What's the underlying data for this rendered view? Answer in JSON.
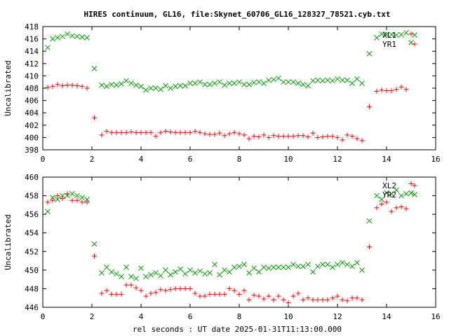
{
  "chart_data": {
    "title": "HIRES continuum, GL16, file:Skynet_60706_GL16_128327_78521.cyb.txt",
    "xlabel": "rel seconds : UT date 2025-01-31T11:13:00.000",
    "panels": [
      {
        "type": "scatter",
        "ylabel": "Uncalibrated",
        "xlim": [
          0,
          16
        ],
        "ylim": [
          398,
          418
        ],
        "xticks": [
          "0",
          "2",
          "4",
          "6",
          "8",
          "10",
          "12",
          "14",
          "16"
        ],
        "yticks": [
          "398",
          "400",
          "402",
          "404",
          "406",
          "408",
          "410",
          "412",
          "414",
          "416",
          "418"
        ],
        "grid": false,
        "legend_position": "top-right",
        "series": [
          {
            "name": "XL1",
            "marker": "x",
            "color": "#00a000",
            "x": [
              0.2,
              0.4,
              0.6,
              0.8,
              1.0,
              1.2,
              1.4,
              1.6,
              1.8,
              2.1,
              2.4,
              2.6,
              2.8,
              3.0,
              3.2,
              3.4,
              3.6,
              3.8,
              4.0,
              4.2,
              4.4,
              4.6,
              4.8,
              5.0,
              5.2,
              5.4,
              5.6,
              5.8,
              6.0,
              6.2,
              6.4,
              6.6,
              6.8,
              7.0,
              7.2,
              7.4,
              7.6,
              7.8,
              8.0,
              8.2,
              8.4,
              8.6,
              8.8,
              9.0,
              9.2,
              9.4,
              9.6,
              9.8,
              10.0,
              10.2,
              10.4,
              10.6,
              10.8,
              11.0,
              11.2,
              11.4,
              11.6,
              11.8,
              12.0,
              12.2,
              12.4,
              12.6,
              12.8,
              13.0,
              13.3,
              13.6,
              13.8,
              14.0,
              14.2,
              14.4,
              14.6,
              14.8,
              15.0
            ],
            "y": [
              414.6,
              416.0,
              416.2,
              416.4,
              416.8,
              416.5,
              416.4,
              416.3,
              416.2,
              411.2,
              408.5,
              408.3,
              408.6,
              408.5,
              408.7,
              409.2,
              408.8,
              408.5,
              408.3,
              407.7,
              408.0,
              408.0,
              407.8,
              408.4,
              408.0,
              408.3,
              408.4,
              408.4,
              408.8,
              408.8,
              409.0,
              408.6,
              408.6,
              408.8,
              409.0,
              408.5,
              408.8,
              408.8,
              409.0,
              408.6,
              408.6,
              408.9,
              409.0,
              408.8,
              409.3,
              409.4,
              409.6,
              409.0,
              409.0,
              409.0,
              408.8,
              408.6,
              408.4,
              409.2,
              409.3,
              409.2,
              409.3,
              409.2,
              409.5,
              409.3,
              409.3,
              408.8,
              409.5,
              408.8,
              413.6,
              416.2,
              416.8,
              416.7,
              416.7,
              416.6,
              416.7,
              417.0,
              415.4
            ]
          },
          {
            "name": "YR1",
            "marker": "+",
            "color": "#ff0000",
            "x": [
              0.2,
              0.4,
              0.6,
              0.8,
              1.0,
              1.2,
              1.4,
              1.6,
              1.8,
              2.1,
              2.4,
              2.6,
              2.8,
              3.0,
              3.2,
              3.4,
              3.6,
              3.8,
              4.0,
              4.2,
              4.4,
              4.6,
              4.8,
              5.0,
              5.2,
              5.4,
              5.6,
              5.8,
              6.0,
              6.2,
              6.4,
              6.6,
              6.8,
              7.0,
              7.2,
              7.4,
              7.6,
              7.8,
              8.0,
              8.2,
              8.4,
              8.6,
              8.8,
              9.0,
              9.2,
              9.4,
              9.6,
              9.8,
              10.0,
              10.2,
              10.4,
              10.6,
              10.8,
              11.0,
              11.2,
              11.4,
              11.6,
              11.8,
              12.0,
              12.2,
              12.4,
              12.6,
              12.8,
              13.0,
              13.3,
              13.6,
              13.8,
              14.0,
              14.2,
              14.4,
              14.6,
              14.8,
              15.0
            ],
            "y": [
              408.1,
              408.3,
              408.6,
              408.4,
              408.5,
              408.5,
              408.4,
              408.3,
              408.0,
              403.2,
              400.4,
              401.0,
              400.8,
              400.8,
              400.8,
              400.8,
              400.9,
              400.8,
              400.8,
              400.8,
              400.8,
              400.2,
              400.8,
              401.0,
              400.9,
              400.8,
              400.8,
              400.8,
              400.8,
              401.0,
              400.8,
              400.6,
              400.5,
              400.5,
              400.7,
              400.3,
              400.6,
              400.8,
              400.6,
              400.4,
              399.8,
              400.2,
              400.1,
              400.4,
              400.0,
              400.3,
              400.2,
              400.2,
              400.2,
              400.2,
              400.3,
              400.3,
              400.1,
              400.7,
              400.0,
              400.1,
              400.2,
              400.2,
              400.0,
              399.6,
              400.4,
              400.2,
              399.8,
              399.5,
              405.0,
              407.5,
              407.7,
              407.6,
              407.6,
              407.8,
              408.2,
              407.8,
              416.8
            ]
          }
        ]
      },
      {
        "type": "scatter",
        "ylabel": "Uncalibrated",
        "xlim": [
          0,
          16
        ],
        "ylim": [
          446,
          460
        ],
        "xticks": [
          "0",
          "2",
          "4",
          "6",
          "8",
          "10",
          "12",
          "14",
          "16"
        ],
        "yticks": [
          "446",
          "448",
          "450",
          "452",
          "454",
          "456",
          "458",
          "460"
        ],
        "grid": false,
        "legend_position": "top-right",
        "series": [
          {
            "name": "XL2",
            "marker": "+",
            "color": "#ff0000",
            "x": [
              0.2,
              0.4,
              0.6,
              0.8,
              1.0,
              1.2,
              1.4,
              1.6,
              1.8,
              2.1,
              2.4,
              2.6,
              2.8,
              3.0,
              3.2,
              3.4,
              3.6,
              3.8,
              4.0,
              4.2,
              4.4,
              4.6,
              4.8,
              5.0,
              5.2,
              5.4,
              5.6,
              5.8,
              6.0,
              6.2,
              6.4,
              6.6,
              6.8,
              7.0,
              7.2,
              7.4,
              7.6,
              7.8,
              8.0,
              8.2,
              8.4,
              8.6,
              8.8,
              9.0,
              9.2,
              9.4,
              9.6,
              9.8,
              10.0,
              10.2,
              10.4,
              10.6,
              10.8,
              11.0,
              11.2,
              11.4,
              11.6,
              11.8,
              12.0,
              12.2,
              12.4,
              12.6,
              12.8,
              13.0,
              13.3,
              13.6,
              13.8,
              14.0,
              14.2,
              14.4,
              14.6,
              14.8,
              15.0
            ],
            "y": [
              457.3,
              457.5,
              458.0,
              457.7,
              458.2,
              457.5,
              457.5,
              457.3,
              457.3,
              451.5,
              447.5,
              447.8,
              447.4,
              447.4,
              447.4,
              448.4,
              448.4,
              448.1,
              447.8,
              447.2,
              447.5,
              447.6,
              447.9,
              447.8,
              447.9,
              448.0,
              448.0,
              448.0,
              448.0,
              447.5,
              447.2,
              447.2,
              447.4,
              447.4,
              447.4,
              447.4,
              448.0,
              447.8,
              447.4,
              447.8,
              446.8,
              447.3,
              447.2,
              446.9,
              447.2,
              446.8,
              447.2,
              446.8,
              446.5,
              447.2,
              447.5,
              446.8,
              447.0,
              446.8,
              446.8,
              446.8,
              446.8,
              447.0,
              447.2,
              446.8,
              446.7,
              447.0,
              447.0,
              446.8,
              452.5,
              456.7,
              457.1,
              457.3,
              456.3,
              456.7,
              456.8,
              456.6,
              459.3
            ]
          },
          {
            "name": "YR2",
            "marker": "x",
            "color": "#00a000",
            "x": [
              0.2,
              0.4,
              0.6,
              0.8,
              1.0,
              1.2,
              1.4,
              1.6,
              1.8,
              2.1,
              2.4,
              2.6,
              2.8,
              3.0,
              3.2,
              3.4,
              3.6,
              3.8,
              4.0,
              4.2,
              4.4,
              4.6,
              4.8,
              5.0,
              5.2,
              5.4,
              5.6,
              5.8,
              6.0,
              6.2,
              6.4,
              6.6,
              6.8,
              7.0,
              7.2,
              7.4,
              7.6,
              7.8,
              8.0,
              8.2,
              8.4,
              8.6,
              8.8,
              9.0,
              9.2,
              9.4,
              9.6,
              9.8,
              10.0,
              10.2,
              10.4,
              10.6,
              10.8,
              11.0,
              11.2,
              11.4,
              11.6,
              11.8,
              12.0,
              12.2,
              12.4,
              12.6,
              12.8,
              13.0,
              13.3,
              13.6,
              13.8,
              14.0,
              14.2,
              14.4,
              14.6,
              14.8,
              15.0
            ],
            "y": [
              456.3,
              457.8,
              457.6,
              458.0,
              458.0,
              458.2,
              458.0,
              457.8,
              457.6,
              452.8,
              449.7,
              450.3,
              449.8,
              449.6,
              449.3,
              450.3,
              449.3,
              449.1,
              450.2,
              449.3,
              449.5,
              449.7,
              449.4,
              450.0,
              449.5,
              449.8,
              450.1,
              449.6,
              450.0,
              449.7,
              449.9,
              449.6,
              449.7,
              450.6,
              449.5,
              450.0,
              449.8,
              450.3,
              450.4,
              450.6,
              449.7,
              450.2,
              449.8,
              450.3,
              450.2,
              450.3,
              450.3,
              450.3,
              450.3,
              450.6,
              450.4,
              450.4,
              450.6,
              449.8,
              450.4,
              450.6,
              450.6,
              450.3,
              450.6,
              450.8,
              450.6,
              450.4,
              450.8,
              450.0,
              455.3,
              458.0,
              457.6,
              458.3,
              458.2,
              458.6,
              458.0,
              458.2,
              458.3
            ]
          }
        ]
      }
    ]
  }
}
